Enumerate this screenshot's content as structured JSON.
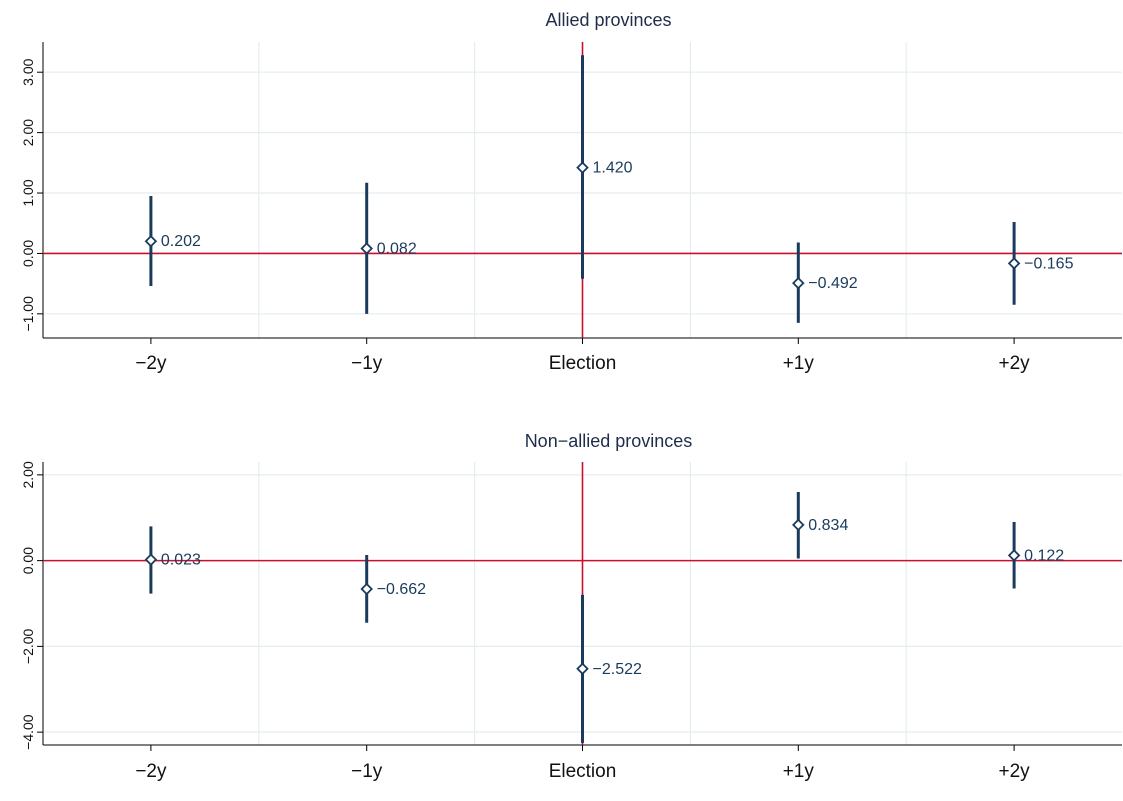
{
  "colors": {
    "series": "#1b3b5c",
    "reference_line": "#c8102e",
    "grid": "#e4eef0",
    "axis": "#000000"
  },
  "chart_data": [
    {
      "type": "scatter",
      "title": "Allied provinces",
      "categories": [
        "−2y",
        "−1y",
        "Election",
        "+1y",
        "+2y"
      ],
      "values": [
        0.202,
        0.082,
        1.42,
        -0.492,
        -0.165
      ],
      "ci_low": [
        -0.54,
        -1.0,
        -0.42,
        -1.15,
        -0.85
      ],
      "ci_high": [
        0.95,
        1.17,
        3.28,
        0.18,
        0.52
      ],
      "value_labels": [
        "0.202",
        "0.082",
        "1.420",
        "−0.492",
        "−0.165"
      ],
      "yticks": [
        3,
        2,
        1,
        0,
        -1
      ],
      "ytick_labels": [
        "3.00",
        "2.00",
        "1.00",
        "0.00",
        "−1.00"
      ],
      "ylim": [
        -1.4,
        3.5
      ],
      "reference_lines": {
        "y": 0,
        "x_category": "Election"
      },
      "marker": "hollow-diamond",
      "grid": true
    },
    {
      "type": "scatter",
      "title": "Non−allied provinces",
      "categories": [
        "−2y",
        "−1y",
        "Election",
        "+1y",
        "+2y"
      ],
      "values": [
        0.023,
        -0.662,
        -2.522,
        0.834,
        0.122
      ],
      "ci_low": [
        -0.77,
        -1.45,
        -4.25,
        0.05,
        -0.65
      ],
      "ci_high": [
        0.8,
        0.13,
        -0.8,
        1.6,
        0.9
      ],
      "value_labels": [
        "0.023",
        "−0.662",
        "−2.522",
        "0.834",
        "0.122"
      ],
      "yticks": [
        2,
        0,
        -2,
        -4
      ],
      "ytick_labels": [
        "2.00",
        "0.00",
        "−2.00",
        "−4.00"
      ],
      "ylim": [
        -4.3,
        2.3
      ],
      "reference_lines": {
        "y": 0,
        "x_category": "Election"
      },
      "marker": "hollow-diamond",
      "grid": true
    }
  ]
}
